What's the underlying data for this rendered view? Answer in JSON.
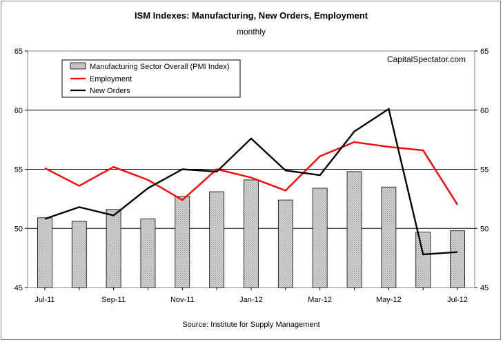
{
  "chart_data": {
    "type": "bar+line",
    "title": "ISM Indexes: Manufacturing, New Orders, Employment",
    "subtitle": "monthly",
    "watermark": "CapitalSpectator.com",
    "source": "Source: Institute for Supply Management",
    "x_tick_labels": [
      "Jul-11",
      "Sep-11",
      "Nov-11",
      "Jan-12",
      "Mar-12",
      "May-12",
      "Jul-12"
    ],
    "months": [
      "Jul-11",
      "Aug-11",
      "Sep-11",
      "Oct-11",
      "Nov-11",
      "Dec-11",
      "Jan-12",
      "Feb-12",
      "Mar-12",
      "Apr-12",
      "May-12",
      "Jun-12",
      "Jul-12"
    ],
    "ylim": [
      45,
      65
    ],
    "y_ticks": [
      45,
      50,
      55,
      60,
      65
    ],
    "grid_lines": [
      50,
      55,
      60
    ],
    "legend_position": "top-left",
    "series": [
      {
        "name": "Manufacturing Sector Overall (PMI Index)",
        "kind": "bar",
        "color": "#c0c0c0",
        "values": [
          50.9,
          50.6,
          51.6,
          50.8,
          52.7,
          53.1,
          54.1,
          52.4,
          53.4,
          54.8,
          53.5,
          49.7,
          49.8
        ]
      },
      {
        "name": "Employment",
        "kind": "line",
        "color": "#ff0000",
        "values": [
          55.1,
          53.6,
          55.2,
          54.1,
          52.4,
          55.0,
          54.3,
          53.2,
          56.1,
          57.3,
          56.9,
          56.6,
          52.0
        ]
      },
      {
        "name": "New Orders",
        "kind": "line",
        "color": "#000000",
        "values": [
          50.8,
          51.8,
          51.1,
          53.4,
          55.0,
          54.8,
          57.6,
          54.9,
          54.5,
          58.2,
          60.1,
          47.8,
          48.0
        ]
      }
    ]
  }
}
